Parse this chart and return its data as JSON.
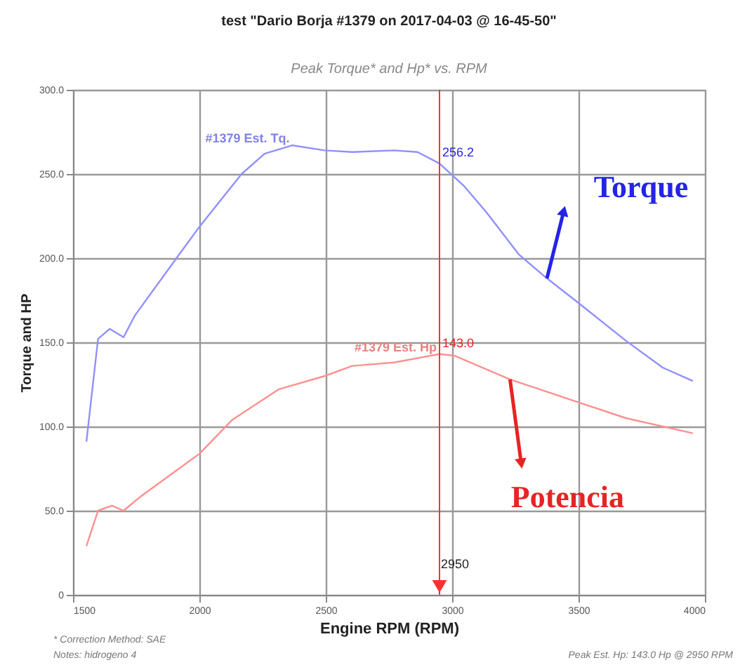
{
  "chart_data": {
    "type": "line",
    "title": "test \"Dario Borja #1379 on 2017-04-03 @ 16-45-50\"",
    "subtitle": "Peak Torque* and Hp* vs. RPM",
    "xlabel": "Engine RPM (RPM)",
    "ylabel": "Torque and HP",
    "xlim": [
      1500,
      4000
    ],
    "xticks": [
      1500,
      2000,
      2500,
      3000,
      3500,
      4000
    ],
    "ylim": [
      0,
      300
    ],
    "yticks": [
      {
        "value": 0,
        "label": "0"
      },
      {
        "value": 50,
        "label": "50.0"
      },
      {
        "value": 100,
        "label": "100.0"
      },
      {
        "value": 150,
        "label": "150.0"
      },
      {
        "value": 200,
        "label": "200.0"
      },
      {
        "value": 250,
        "label": "250.0"
      },
      {
        "value": 300,
        "label": "300.0"
      }
    ],
    "grid": true,
    "legend": false,
    "series": [
      {
        "name": "#1379 Est. Tq.",
        "color": "#9090ff",
        "x": [
          1553,
          1599,
          1645,
          1700,
          1745,
          1919,
          2002,
          2167,
          2258,
          2368,
          2496,
          2605,
          2770,
          2863,
          2950,
          3046,
          3137,
          3265,
          3375,
          3503,
          3687,
          3833,
          3952
        ],
        "values": [
          91,
          152,
          158,
          153,
          166,
          202,
          219,
          250,
          262,
          267,
          264,
          263,
          264,
          263,
          256.2,
          243,
          227,
          202,
          188,
          173,
          151,
          135,
          127
        ],
        "value_labels": [
          null,
          null,
          null,
          null,
          null,
          null,
          null,
          null,
          null,
          null,
          null,
          null,
          null,
          null,
          "256.2",
          null,
          null,
          null,
          null,
          null,
          null,
          null,
          null
        ]
      },
      {
        "name": "#1379 Est. Hp",
        "color": "#ff9090",
        "x": [
          1553,
          1599,
          1654,
          1700,
          1764,
          2002,
          2130,
          2313,
          2496,
          2605,
          2770,
          2950,
          3010,
          3229,
          3467,
          3687,
          3952
        ],
        "values": [
          29,
          50,
          53,
          50,
          58,
          84,
          104,
          122,
          130,
          136,
          138,
          143.0,
          142,
          128,
          116,
          105,
          96
        ],
        "value_labels": [
          null,
          null,
          null,
          null,
          null,
          null,
          null,
          null,
          null,
          null,
          null,
          "143.0",
          null,
          null,
          null,
          null,
          null
        ]
      }
    ],
    "ref_lines": [
      {
        "axis": "x",
        "value": 2950,
        "label": "2950",
        "color": "#ff3030"
      }
    ],
    "annotations": [
      {
        "text": "Torque",
        "x": 3375,
        "y": 188
      },
      {
        "text": "Potencia",
        "x": 3229,
        "y": 128
      },
      "* Correction Method: SAE",
      "Notes: hidrogeno 4",
      "Peak Est. Hp: 143.0 Hp @ 2950 RPM"
    ]
  }
}
